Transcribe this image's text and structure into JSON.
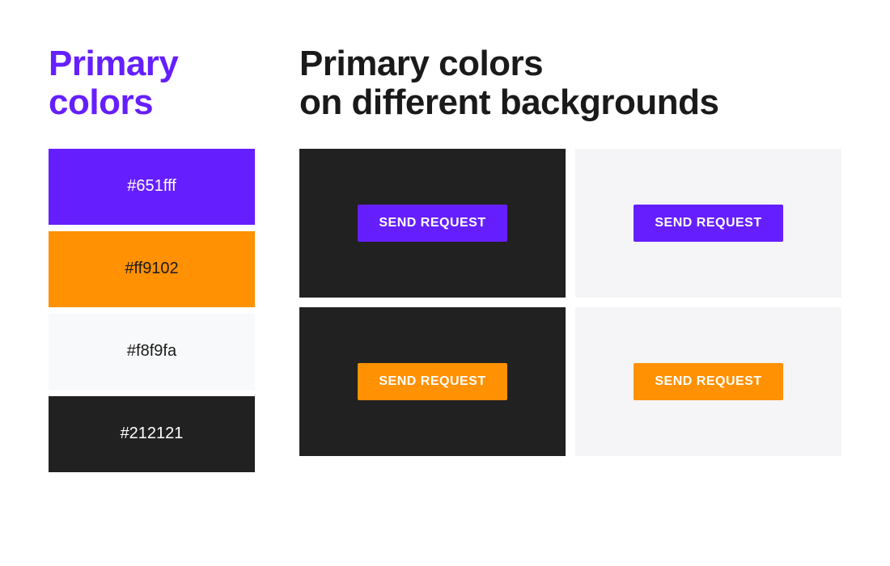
{
  "left": {
    "title": "Primary colors",
    "title_color": "#651fff",
    "swatches": [
      {
        "hex": "#651fff",
        "label": "#651fff",
        "text_color": "#ffffff"
      },
      {
        "hex": "#ff9102",
        "label": "#ff9102",
        "text_color": "#1a1a1a"
      },
      {
        "hex": "#f8f9fa",
        "label": "#f8f9fa",
        "text_color": "#1a1a1a"
      },
      {
        "hex": "#212121",
        "label": "#212121",
        "text_color": "#ffffff"
      }
    ]
  },
  "right": {
    "title": "Primary colors\non different backgrounds",
    "panels": [
      {
        "bg": "#212121",
        "btn_bg": "#651fff",
        "btn_label": "SEND REQUEST"
      },
      {
        "bg": "#f5f5f7",
        "btn_bg": "#651fff",
        "btn_label": "SEND REQUEST"
      },
      {
        "bg": "#212121",
        "btn_bg": "#ff9102",
        "btn_label": "SEND REQUEST"
      },
      {
        "bg": "#f5f5f7",
        "btn_bg": "#ff9102",
        "btn_label": "SEND REQUEST"
      }
    ]
  }
}
